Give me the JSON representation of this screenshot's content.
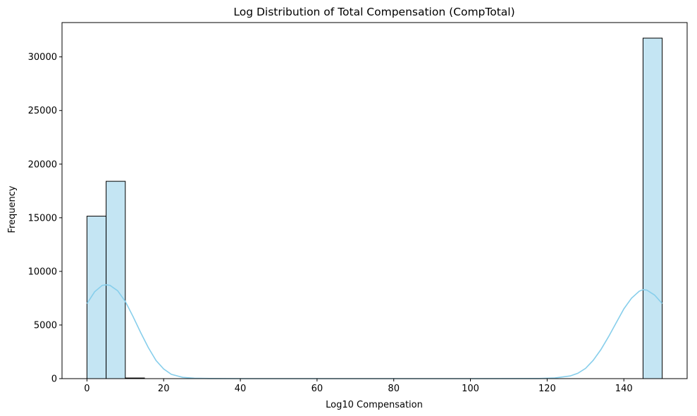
{
  "chart_data": {
    "type": "histogram",
    "title": "Log Distribution of Total Compensation (CompTotal)",
    "xlabel": "Log10 Compensation",
    "ylabel": "Frequency",
    "xlim": [
      -6.5,
      156.5
    ],
    "ylim": [
      0,
      33200
    ],
    "xticks": [
      0,
      20,
      40,
      60,
      80,
      100,
      120,
      140
    ],
    "yticks": [
      0,
      5000,
      10000,
      15000,
      20000,
      25000,
      30000
    ],
    "bin_width": 5,
    "bins": [
      {
        "x0": 0,
        "x1": 5,
        "count": 15150
      },
      {
        "x0": 5,
        "x1": 10,
        "count": 18400
      },
      {
        "x0": 10,
        "x1": 15,
        "count": 60
      },
      {
        "x0": 145,
        "x1": 150,
        "count": 31750
      }
    ],
    "kde": {
      "x": [
        0,
        2,
        4,
        5,
        6,
        8,
        10,
        12,
        14,
        16,
        18,
        20,
        22,
        25,
        28,
        32,
        40,
        60,
        80,
        100,
        118,
        122,
        126,
        128,
        130,
        132,
        134,
        136,
        138,
        140,
        142,
        144,
        145,
        146,
        148,
        150
      ],
      "y": [
        7000,
        8100,
        8700,
        8750,
        8700,
        8200,
        7200,
        5800,
        4300,
        2900,
        1700,
        900,
        400,
        120,
        40,
        10,
        0,
        0,
        0,
        0,
        10,
        60,
        250,
        500,
        950,
        1700,
        2700,
        3900,
        5200,
        6500,
        7500,
        8150,
        8300,
        8250,
        7800,
        7000
      ]
    },
    "colors": {
      "bar_fill": "#c4e5f3",
      "bar_edge": "#000000",
      "kde_line": "#87ceeb"
    },
    "grid": false,
    "legend": "none"
  }
}
